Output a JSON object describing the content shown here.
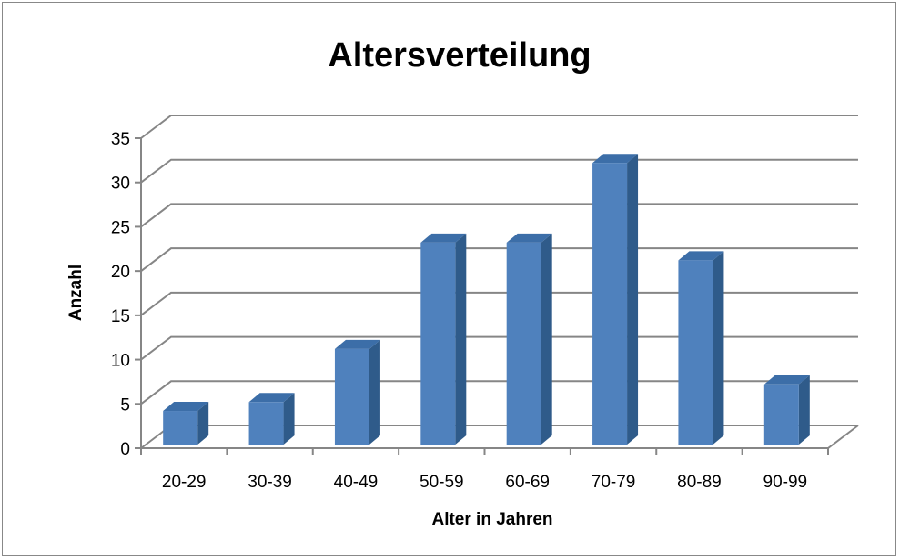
{
  "chart_data": {
    "type": "bar",
    "title": "Altersverteilung",
    "xlabel": "Alter in Jahren",
    "ylabel": "Anzahl",
    "categories": [
      "20-29",
      "30-39",
      "40-49",
      "50-59",
      "60-69",
      "70-79",
      "80-89",
      "90-99"
    ],
    "values": [
      4,
      5,
      11,
      23,
      23,
      32,
      21,
      7
    ],
    "ylim": [
      0,
      35
    ],
    "yticks": [
      "0",
      "5",
      "10",
      "15",
      "20",
      "25",
      "30",
      "35"
    ],
    "grid": true,
    "style": "3d-column",
    "colors": {
      "bar_front": "#4F81BD",
      "bar_side": "#2F5B8A",
      "bar_top": "#3C6EA8",
      "gridline": "#868686",
      "axis": "#868686"
    }
  }
}
